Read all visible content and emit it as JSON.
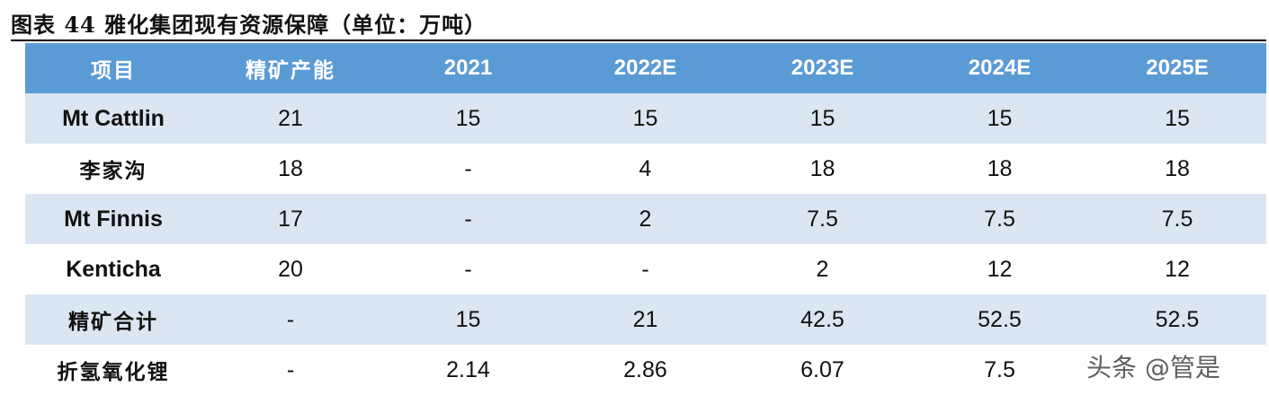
{
  "caption": "图表 44  雅化集团现有资源保障（单位：万吨）",
  "table": {
    "headers": [
      "项目",
      "精矿产能",
      "2021",
      "2022E",
      "2023E",
      "2024E",
      "2025E"
    ],
    "rows": [
      {
        "name": "Mt Cattlin",
        "cells": [
          "21",
          "15",
          "15",
          "15",
          "15",
          "15"
        ]
      },
      {
        "name": "李家沟",
        "cells": [
          "18",
          "-",
          "4",
          "18",
          "18",
          "18"
        ]
      },
      {
        "name": "Mt Finnis",
        "cells": [
          "17",
          "-",
          "2",
          "7.5",
          "7.5",
          "7.5"
        ]
      },
      {
        "name": "Kenticha",
        "cells": [
          "20",
          "-",
          "-",
          "2",
          "12",
          "12"
        ]
      },
      {
        "name": "精矿合计",
        "cells": [
          "-",
          "15",
          "21",
          "42.5",
          "52.5",
          "52.5"
        ]
      },
      {
        "name": "折氢氧化锂",
        "cells": [
          "-",
          "2.14",
          "2.86",
          "6.07",
          "7.5",
          ""
        ]
      }
    ]
  },
  "watermark": "头条 @管是"
}
